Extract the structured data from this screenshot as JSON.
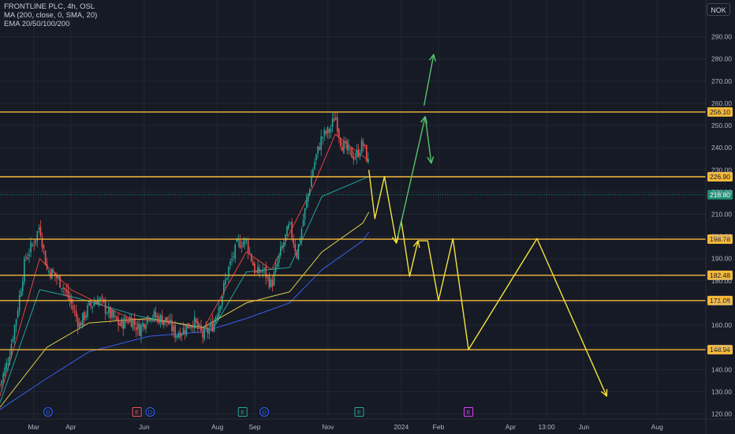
{
  "legend": {
    "symbol_line": "FRONTLINE PLC, 4h, OSL",
    "ma_line": "MA (200, close, 0, SMA, 20)",
    "ema_line": "EMA 20/50/100/200"
  },
  "currency_button": "NOK",
  "colors": {
    "background": "#161a25",
    "grid": "#232734",
    "axis_text": "#b2b5be",
    "level_line": "#f5b93a",
    "level_label_bg": "#f5b93a",
    "level_label_text": "#131722",
    "current_price_bg": "#1d8f72",
    "projection_yellow": "#f5e33d",
    "projection_green": "#5ac26a",
    "candle_up": "#26a69a",
    "candle_down": "#ef5350",
    "ema20": "#e4433b",
    "ema50": "#22a39a",
    "ema100": "#d9cc49",
    "ema200": "#3a5ee8"
  },
  "chart_data": {
    "type": "candlestick",
    "title": "FRONTLINE PLC, 4h, OSL",
    "currency": "NOK",
    "ylim": [
      118,
      296
    ],
    "y_ticks": [
      "120.00",
      "130.00",
      "140.00",
      "150.00",
      "160.00",
      "170.00",
      "180.00",
      "190.00",
      "200.00",
      "210.00",
      "220.00",
      "230.00",
      "240.00",
      "250.00",
      "260.00",
      "270.00",
      "280.00",
      "290.00"
    ],
    "x_ticks": [
      {
        "label": "Mar",
        "date": "2023-03-01"
      },
      {
        "label": "Apr",
        "date": "2023-04-01"
      },
      {
        "label": "Jun",
        "date": "2023-06-01"
      },
      {
        "label": "Aug",
        "date": "2023-08-01"
      },
      {
        "label": "Sep",
        "date": "2023-09-01"
      },
      {
        "label": "Nov",
        "date": "2023-11-01"
      },
      {
        "label": "2024",
        "date": "2024-01-01"
      },
      {
        "label": "Feb",
        "date": "2024-02-01"
      },
      {
        "label": "Apr",
        "date": "2024-04-01"
      },
      {
        "label": "13:00",
        "date": "2024-05-01"
      },
      {
        "label": "Jun",
        "date": "2024-06-01"
      },
      {
        "label": "Aug",
        "date": "2024-08-01"
      }
    ],
    "price_path": [
      [
        "2023-02-01",
        133
      ],
      [
        "2023-02-08",
        145
      ],
      [
        "2023-02-15",
        165
      ],
      [
        "2023-02-22",
        190
      ],
      [
        "2023-03-01",
        197
      ],
      [
        "2023-03-06",
        205
      ],
      [
        "2023-03-12",
        185
      ],
      [
        "2023-03-18",
        183
      ],
      [
        "2023-03-25",
        178
      ],
      [
        "2023-04-01",
        170
      ],
      [
        "2023-04-08",
        160
      ],
      [
        "2023-04-16",
        168
      ],
      [
        "2023-04-24",
        172
      ],
      [
        "2023-05-03",
        165
      ],
      [
        "2023-05-12",
        160
      ],
      [
        "2023-05-20",
        163
      ],
      [
        "2023-05-28",
        158
      ],
      [
        "2023-06-05",
        165
      ],
      [
        "2023-06-14",
        163
      ],
      [
        "2023-06-20",
        162
      ],
      [
        "2023-06-27",
        156
      ],
      [
        "2023-07-04",
        158
      ],
      [
        "2023-07-12",
        162
      ],
      [
        "2023-07-20",
        155
      ],
      [
        "2023-07-28",
        160
      ],
      [
        "2023-08-04",
        172
      ],
      [
        "2023-08-10",
        185
      ],
      [
        "2023-08-18",
        197
      ],
      [
        "2023-08-25",
        198
      ],
      [
        "2023-09-02",
        183
      ],
      [
        "2023-09-08",
        185
      ],
      [
        "2023-09-15",
        178
      ],
      [
        "2023-09-22",
        192
      ],
      [
        "2023-09-30",
        205
      ],
      [
        "2023-10-06",
        192
      ],
      [
        "2023-10-13",
        212
      ],
      [
        "2023-10-20",
        232
      ],
      [
        "2023-10-27",
        245
      ],
      [
        "2023-11-03",
        248
      ],
      [
        "2023-11-07",
        255
      ],
      [
        "2023-11-12",
        242
      ],
      [
        "2023-11-18",
        238
      ],
      [
        "2023-11-24",
        236
      ],
      [
        "2023-11-30",
        242
      ],
      [
        "2023-12-05",
        232
      ]
    ],
    "ema_series": [
      {
        "name": "EMA 20",
        "points": [
          [
            "2023-02-01",
            128
          ],
          [
            "2023-03-06",
            190
          ],
          [
            "2023-04-01",
            176
          ],
          [
            "2023-05-20",
            163
          ],
          [
            "2023-06-27",
            161
          ],
          [
            "2023-07-20",
            158
          ],
          [
            "2023-08-25",
            193
          ],
          [
            "2023-09-15",
            185
          ],
          [
            "2023-10-20",
            223
          ],
          [
            "2023-11-07",
            246
          ],
          [
            "2023-12-05",
            234
          ]
        ]
      },
      {
        "name": "EMA 50",
        "points": [
          [
            "2023-02-01",
            125
          ],
          [
            "2023-03-06",
            176
          ],
          [
            "2023-04-08",
            172
          ],
          [
            "2023-05-28",
            164
          ],
          [
            "2023-06-27",
            161
          ],
          [
            "2023-07-28",
            158
          ],
          [
            "2023-08-25",
            184
          ],
          [
            "2023-09-30",
            186
          ],
          [
            "2023-10-27",
            218
          ],
          [
            "2023-12-05",
            227
          ]
        ]
      },
      {
        "name": "EMA 100",
        "points": [
          [
            "2023-02-01",
            123
          ],
          [
            "2023-03-12",
            150
          ],
          [
            "2023-04-16",
            161
          ],
          [
            "2023-06-05",
            163
          ],
          [
            "2023-07-20",
            159
          ],
          [
            "2023-08-25",
            170
          ],
          [
            "2023-09-30",
            175
          ],
          [
            "2023-10-27",
            193
          ],
          [
            "2023-11-30",
            206
          ],
          [
            "2023-12-05",
            211
          ]
        ]
      },
      {
        "name": "EMA 200",
        "points": [
          [
            "2023-02-01",
            122
          ],
          [
            "2023-03-12",
            136
          ],
          [
            "2023-04-16",
            148
          ],
          [
            "2023-06-05",
            155
          ],
          [
            "2023-07-20",
            157
          ],
          [
            "2023-08-25",
            163
          ],
          [
            "2023-09-30",
            170
          ],
          [
            "2023-10-27",
            185
          ],
          [
            "2023-11-30",
            198
          ],
          [
            "2023-12-05",
            202
          ]
        ]
      }
    ],
    "levels": [
      "256.10",
      "226.90",
      "198.78",
      "182.48",
      "171.08",
      "148.94"
    ],
    "current_price": "218.80",
    "projections": [
      {
        "name": "yellow path",
        "points": [
          [
            "2023-12-05",
            230
          ],
          [
            "2023-12-10",
            208
          ],
          [
            "2023-12-18",
            227
          ],
          [
            "2023-12-28",
            197
          ],
          [
            "2024-01-01",
            207
          ],
          [
            "2024-01-08",
            182
          ],
          [
            "2024-01-15",
            198
          ],
          [
            "2024-01-23",
            198
          ],
          [
            "2024-02-01",
            171
          ],
          [
            "2024-02-13",
            199
          ],
          [
            "2024-02-26",
            149
          ],
          [
            "2024-04-23",
            199
          ],
          [
            "2024-06-20",
            128
          ]
        ]
      },
      {
        "name": "green path",
        "points": [
          [
            "2023-12-28",
            197
          ],
          [
            "2024-01-21",
            254
          ]
        ]
      },
      {
        "name": "green short",
        "points": [
          [
            "2024-01-21",
            254
          ],
          [
            "2024-01-26",
            233
          ]
        ]
      },
      {
        "name": "green up",
        "points": [
          [
            "2024-01-20",
            259
          ],
          [
            "2024-01-28",
            282
          ]
        ]
      }
    ],
    "event_markers": [
      {
        "label": "D",
        "date": "2023-03-13",
        "color": "#2962ff"
      },
      {
        "label": "E",
        "date": "2023-05-26",
        "color": "#ef5350"
      },
      {
        "label": "D",
        "date": "2023-06-06",
        "color": "#2962ff"
      },
      {
        "label": "E",
        "date": "2023-08-22",
        "color": "#26a69a"
      },
      {
        "label": "D",
        "date": "2023-09-09",
        "color": "#2962ff"
      },
      {
        "label": "E",
        "date": "2023-11-27",
        "color": "#26a69a"
      },
      {
        "label": "E",
        "date": "2024-02-26",
        "color": "#e040fb"
      }
    ],
    "grid": true
  }
}
